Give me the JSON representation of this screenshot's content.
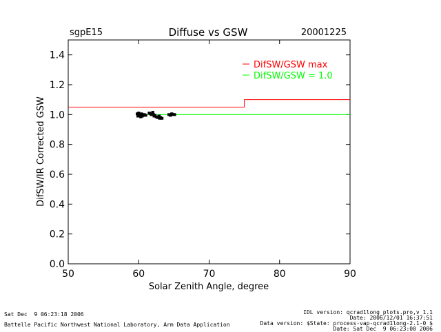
{
  "header": {
    "site": "sgpE15",
    "title": "Diffuse vs GSW",
    "date": "20001225"
  },
  "chart_data": {
    "type": "scatter",
    "title": "Diffuse vs GSW",
    "xlabel": "Solar Zenith Angle, degree",
    "ylabel": "DifSW/IR Corrected GSW",
    "xlim": [
      50,
      90
    ],
    "ylim": [
      0.0,
      1.5
    ],
    "x_ticks": [
      50,
      60,
      70,
      80,
      90
    ],
    "y_ticks": [
      0.0,
      0.2,
      0.4,
      0.6,
      0.8,
      1.0,
      1.2,
      1.4
    ],
    "x_tick_labels": [
      "50",
      "60",
      "70",
      "80",
      "90"
    ],
    "y_tick_labels": [
      "0.0",
      "0.2",
      "0.4",
      "0.6",
      "0.8",
      "1.0",
      "1.2",
      "1.4"
    ],
    "legend_position": "top-right",
    "series": [
      {
        "name": "DifSW/GSW max",
        "kind": "step-line",
        "color": "#ff0000",
        "x": [
          50,
          75,
          75,
          90
        ],
        "y": [
          1.05,
          1.05,
          1.1,
          1.1
        ]
      },
      {
        "name": "DifSW/GSW = 1.0",
        "kind": "line",
        "color": "#00ff00",
        "x": [
          60,
          90
        ],
        "y": [
          1.0,
          1.0
        ]
      },
      {
        "name": "data",
        "kind": "points",
        "color": "#000000",
        "x": [
          59.8,
          59.9,
          60.0,
          60.1,
          60.2,
          60.3,
          60.4,
          60.5,
          60.6,
          60.7,
          60.8,
          61.0,
          61.5,
          61.7,
          61.8,
          62.0,
          62.1,
          62.2,
          62.3,
          62.5,
          62.7,
          62.9,
          63.0,
          63.1,
          63.3,
          64.3,
          64.5,
          64.7,
          64.9,
          65.1
        ],
        "y": [
          1.005,
          0.99,
          1.01,
          0.995,
          1.0,
          0.985,
          1.005,
          0.99,
          1.0,
          0.995,
          1.0,
          0.995,
          1.01,
          1.005,
          1.0,
          1.015,
          1.0,
          0.99,
          0.995,
          0.985,
          0.98,
          0.99,
          0.975,
          0.98,
          0.975,
          1.0,
          0.995,
          1.005,
          1.0,
          1.0
        ]
      }
    ]
  },
  "footer": {
    "left_timestamp": "Sat Dec  9 06:23:18 2006",
    "left_org": "Battelle Pacific Northwest National Laboratory, Arm Data Application",
    "right_lines": [
      "IDL version: qcrad1long_plots.pro,v 1.1",
      "Date: 2006/12/01 16:37:51",
      "Data version: $State: process-vap-qcrad1long-2.1-0 $",
      "Date: Sat Dec  9 06:23:00 2006"
    ]
  }
}
